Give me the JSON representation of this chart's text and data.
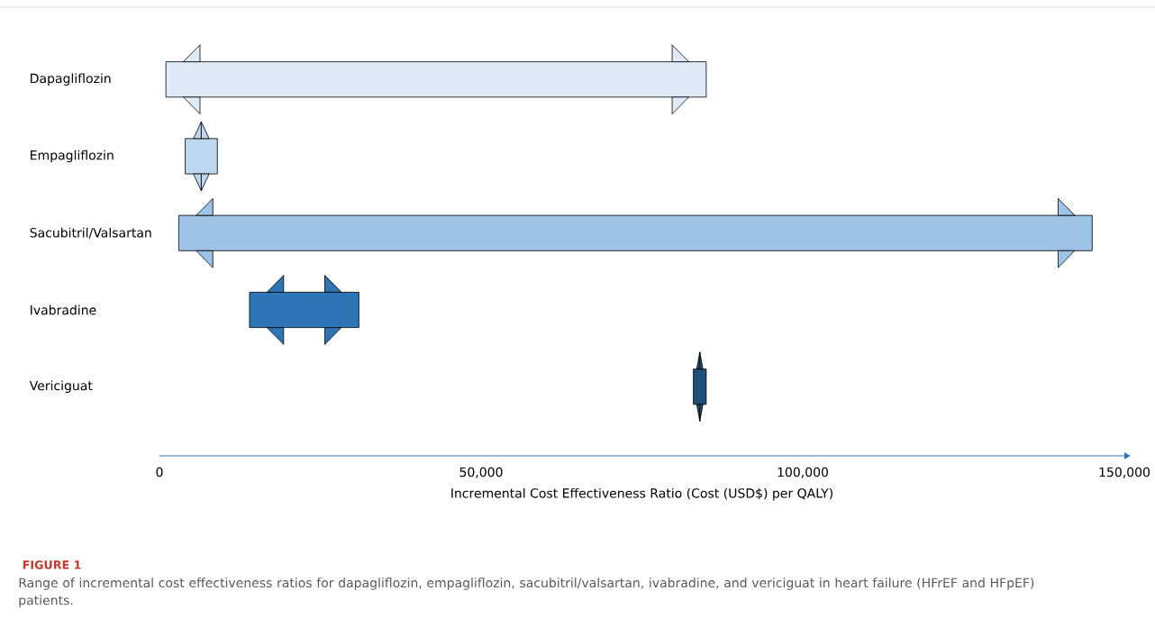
{
  "chart_data": {
    "type": "bar",
    "orientation": "horizontal",
    "title": "FIGURE 1",
    "xlabel": "Incremental Cost Effectiveness Ratio (Cost (USD$) per QALY)",
    "annotations": [
      "Range of incremental cost effectiveness ratios for dapagliflozin, empagliflozin, sacubitril/valsartan, ivabradine, and vericiguat in heart failure (HFrEF and HFpEF) patients."
    ],
    "categories": [
      "Dapagliflozin",
      "Empagliflozin",
      "Sacubitril/Valsartan",
      "Ivabradine",
      "Vericiguat"
    ],
    "base": [
      1000,
      4000,
      3000,
      14000,
      83000
    ],
    "values": [
      84000,
      5000,
      142000,
      17000,
      2000
    ],
    "colors": [
      "#deebf7",
      "#bdd7ee",
      "#9dc3e6",
      "#2e75b6",
      "#1f4e79"
    ],
    "xlim": [
      0,
      150000
    ],
    "xticks": [
      0,
      {
        "value": 50000,
        "label": "50,000"
      },
      {
        "value": 100000,
        "label": "100,000"
      },
      {
        "value": 150000,
        "label": "150,000"
      }
    ]
  }
}
